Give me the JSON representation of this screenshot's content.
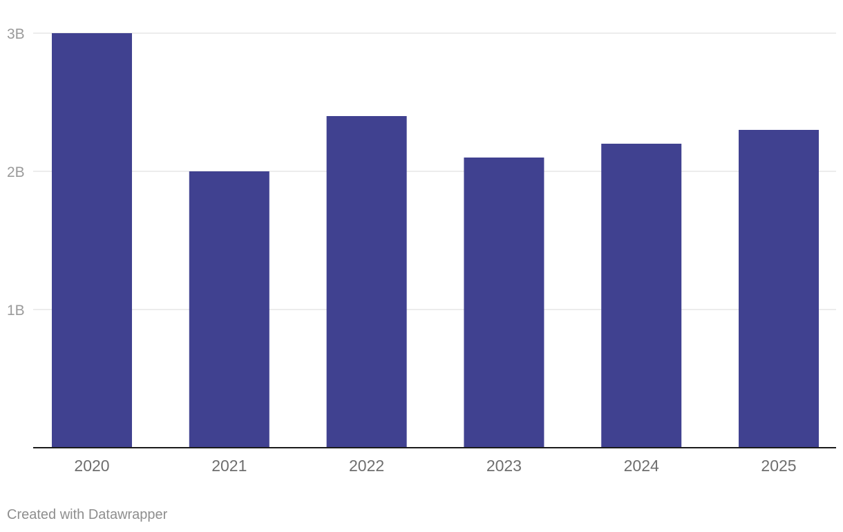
{
  "chart_data": {
    "type": "bar",
    "categories": [
      "2020",
      "2021",
      "2022",
      "2023",
      "2024",
      "2025"
    ],
    "values": [
      3000000000,
      2000000000,
      2400000000,
      2100000000,
      2200000000,
      2300000000
    ],
    "title": "",
    "xlabel": "",
    "ylabel": "",
    "ylim": [
      0,
      3000000000
    ],
    "yticks": [
      1000000000,
      2000000000,
      3000000000
    ],
    "ytick_labels": [
      "1B",
      "2B",
      "3B"
    ],
    "grid": true,
    "bar_color": "#404190",
    "gridline_color": "#e0e0e0",
    "baseline_color": "#1a1a1a"
  },
  "footer": {
    "credit": "Created with Datawrapper"
  }
}
